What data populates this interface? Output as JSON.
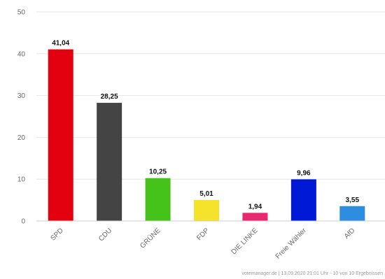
{
  "chart_data": {
    "type": "bar",
    "title": "",
    "xlabel": "",
    "ylabel": "",
    "ylim": [
      0,
      50
    ],
    "yticks": [
      0,
      10,
      20,
      30,
      40,
      50
    ],
    "grid": true,
    "categories": [
      "SPD",
      "CDU",
      "GRÜNE",
      "FDP",
      "DIE LINKE",
      "Freie Wähler",
      "AfD"
    ],
    "values": [
      41.04,
      28.25,
      10.25,
      5.01,
      1.94,
      9.96,
      3.55
    ],
    "value_labels": [
      "41,04",
      "28,25",
      "10,25",
      "5,01",
      "1,94",
      "9,96",
      "3,55"
    ],
    "colors": [
      "#e3000f",
      "#444444",
      "#46c31a",
      "#f5e22a",
      "#e8286f",
      "#0019d6",
      "#2d8de0"
    ]
  },
  "footer": {
    "credit": "votemanager.de | 13.09.2020 21:01 Uhr - 10 von 10 Ergebnissen"
  }
}
